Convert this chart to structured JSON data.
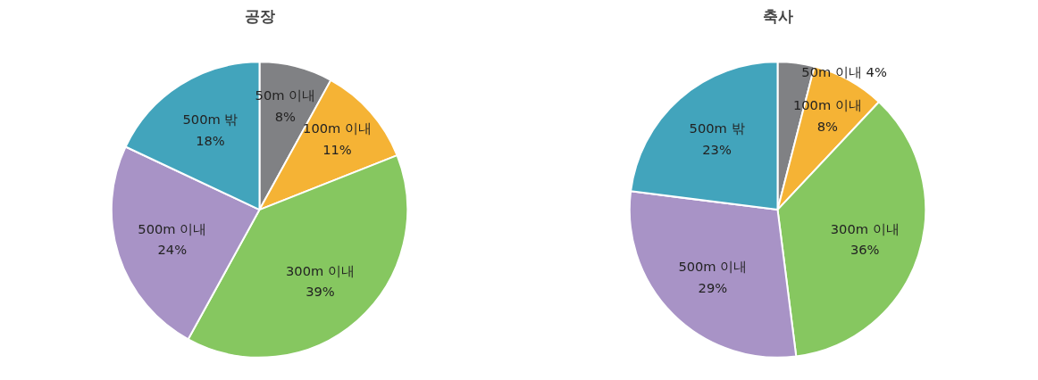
{
  "chart_data": [
    {
      "type": "pie",
      "title": "공장",
      "categories": [
        "50m 이내",
        "100m 이내",
        "300m 이내",
        "500m 이내",
        "500m 밖"
      ],
      "values": [
        8,
        11,
        39,
        24,
        18
      ],
      "value_labels": [
        "8%",
        "11%",
        "39%",
        "24%",
        "18%"
      ],
      "colors": [
        "#808184",
        "#f5b335",
        "#86c760",
        "#a893c6",
        "#42a4bc"
      ]
    },
    {
      "type": "pie",
      "title": "축사",
      "categories": [
        "50m 이내",
        "100m 이내",
        "300m 이내",
        "500m 이내",
        "500m 밖"
      ],
      "values": [
        4,
        8,
        36,
        29,
        23
      ],
      "value_labels": [
        "4%",
        "8%",
        "36%",
        "29%",
        "23%"
      ],
      "colors": [
        "#808184",
        "#f5b335",
        "#86c760",
        "#a893c6",
        "#42a4bc"
      ]
    }
  ]
}
